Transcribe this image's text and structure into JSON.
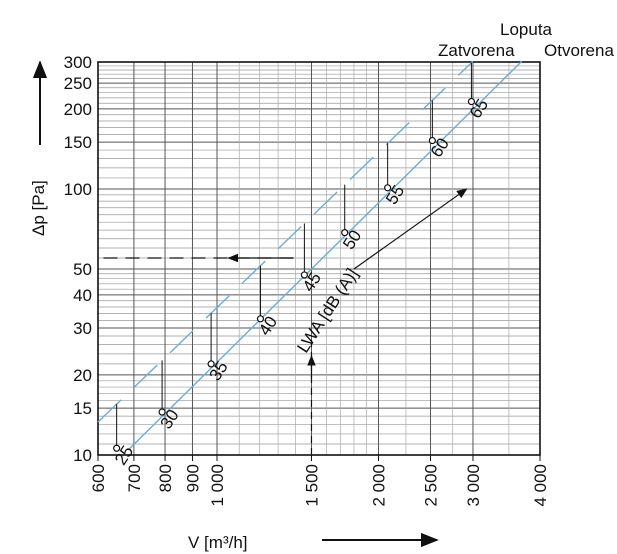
{
  "chart_data": {
    "type": "line",
    "x_scale": "log",
    "y_scale": "log",
    "xlim": [
      600,
      4000
    ],
    "ylim": [
      10,
      300
    ],
    "x_ticks": [
      {
        "value": 600,
        "label": "600"
      },
      {
        "value": 700,
        "label": "700"
      },
      {
        "value": 800,
        "label": "800"
      },
      {
        "value": 900,
        "label": "900"
      },
      {
        "value": 1000,
        "label": "1 000"
      },
      {
        "value": 1500,
        "label": "1 500"
      },
      {
        "value": 2000,
        "label": "2 000"
      },
      {
        "value": 2500,
        "label": "2 500"
      },
      {
        "value": 3000,
        "label": "3 000"
      },
      {
        "value": 4000,
        "label": "4 000"
      }
    ],
    "y_ticks": [
      {
        "value": 10,
        "label": "10"
      },
      {
        "value": 15,
        "label": "15"
      },
      {
        "value": 20,
        "label": "20"
      },
      {
        "value": 30,
        "label": "30"
      },
      {
        "value": 40,
        "label": "40"
      },
      {
        "value": 50,
        "label": "50"
      },
      {
        "value": 100,
        "label": "100"
      },
      {
        "value": 150,
        "label": "150"
      },
      {
        "value": 200,
        "label": "200"
      },
      {
        "value": 250,
        "label": "250"
      },
      {
        "value": 300,
        "label": "300"
      }
    ],
    "ylabel": "Δp [Pa]",
    "xlabel": "V [m³/h]",
    "damper_label": "Loputa",
    "closed_label": "Zatvorena",
    "open_label": "Otvorena",
    "lwa_label": "LWA [dB (A)]",
    "series": [
      {
        "name": "Zatvorena",
        "color": "#6aaed6",
        "x": [
          600,
          3000
        ],
        "y": [
          13.3,
          302
        ]
      },
      {
        "name": "Otvorena",
        "color": "#6aaed6",
        "x": [
          685,
          3700
        ],
        "y": [
          10.5,
          302
        ]
      }
    ],
    "noise_points": [
      {
        "x": 650,
        "y": 10.6,
        "label": "25"
      },
      {
        "x": 790,
        "y": 14.5,
        "label": "30"
      },
      {
        "x": 975,
        "y": 22,
        "label": "35"
      },
      {
        "x": 1205,
        "y": 32.5,
        "label": "40"
      },
      {
        "x": 1455,
        "y": 47.5,
        "label": "45"
      },
      {
        "x": 1730,
        "y": 68.5,
        "label": "50"
      },
      {
        "x": 2080,
        "y": 101,
        "label": "55"
      },
      {
        "x": 2520,
        "y": 152,
        "label": "60"
      },
      {
        "x": 2980,
        "y": 213,
        "label": "65"
      }
    ],
    "grid": true,
    "dashed_reference": {
      "x": 1500,
      "y": 55
    }
  }
}
